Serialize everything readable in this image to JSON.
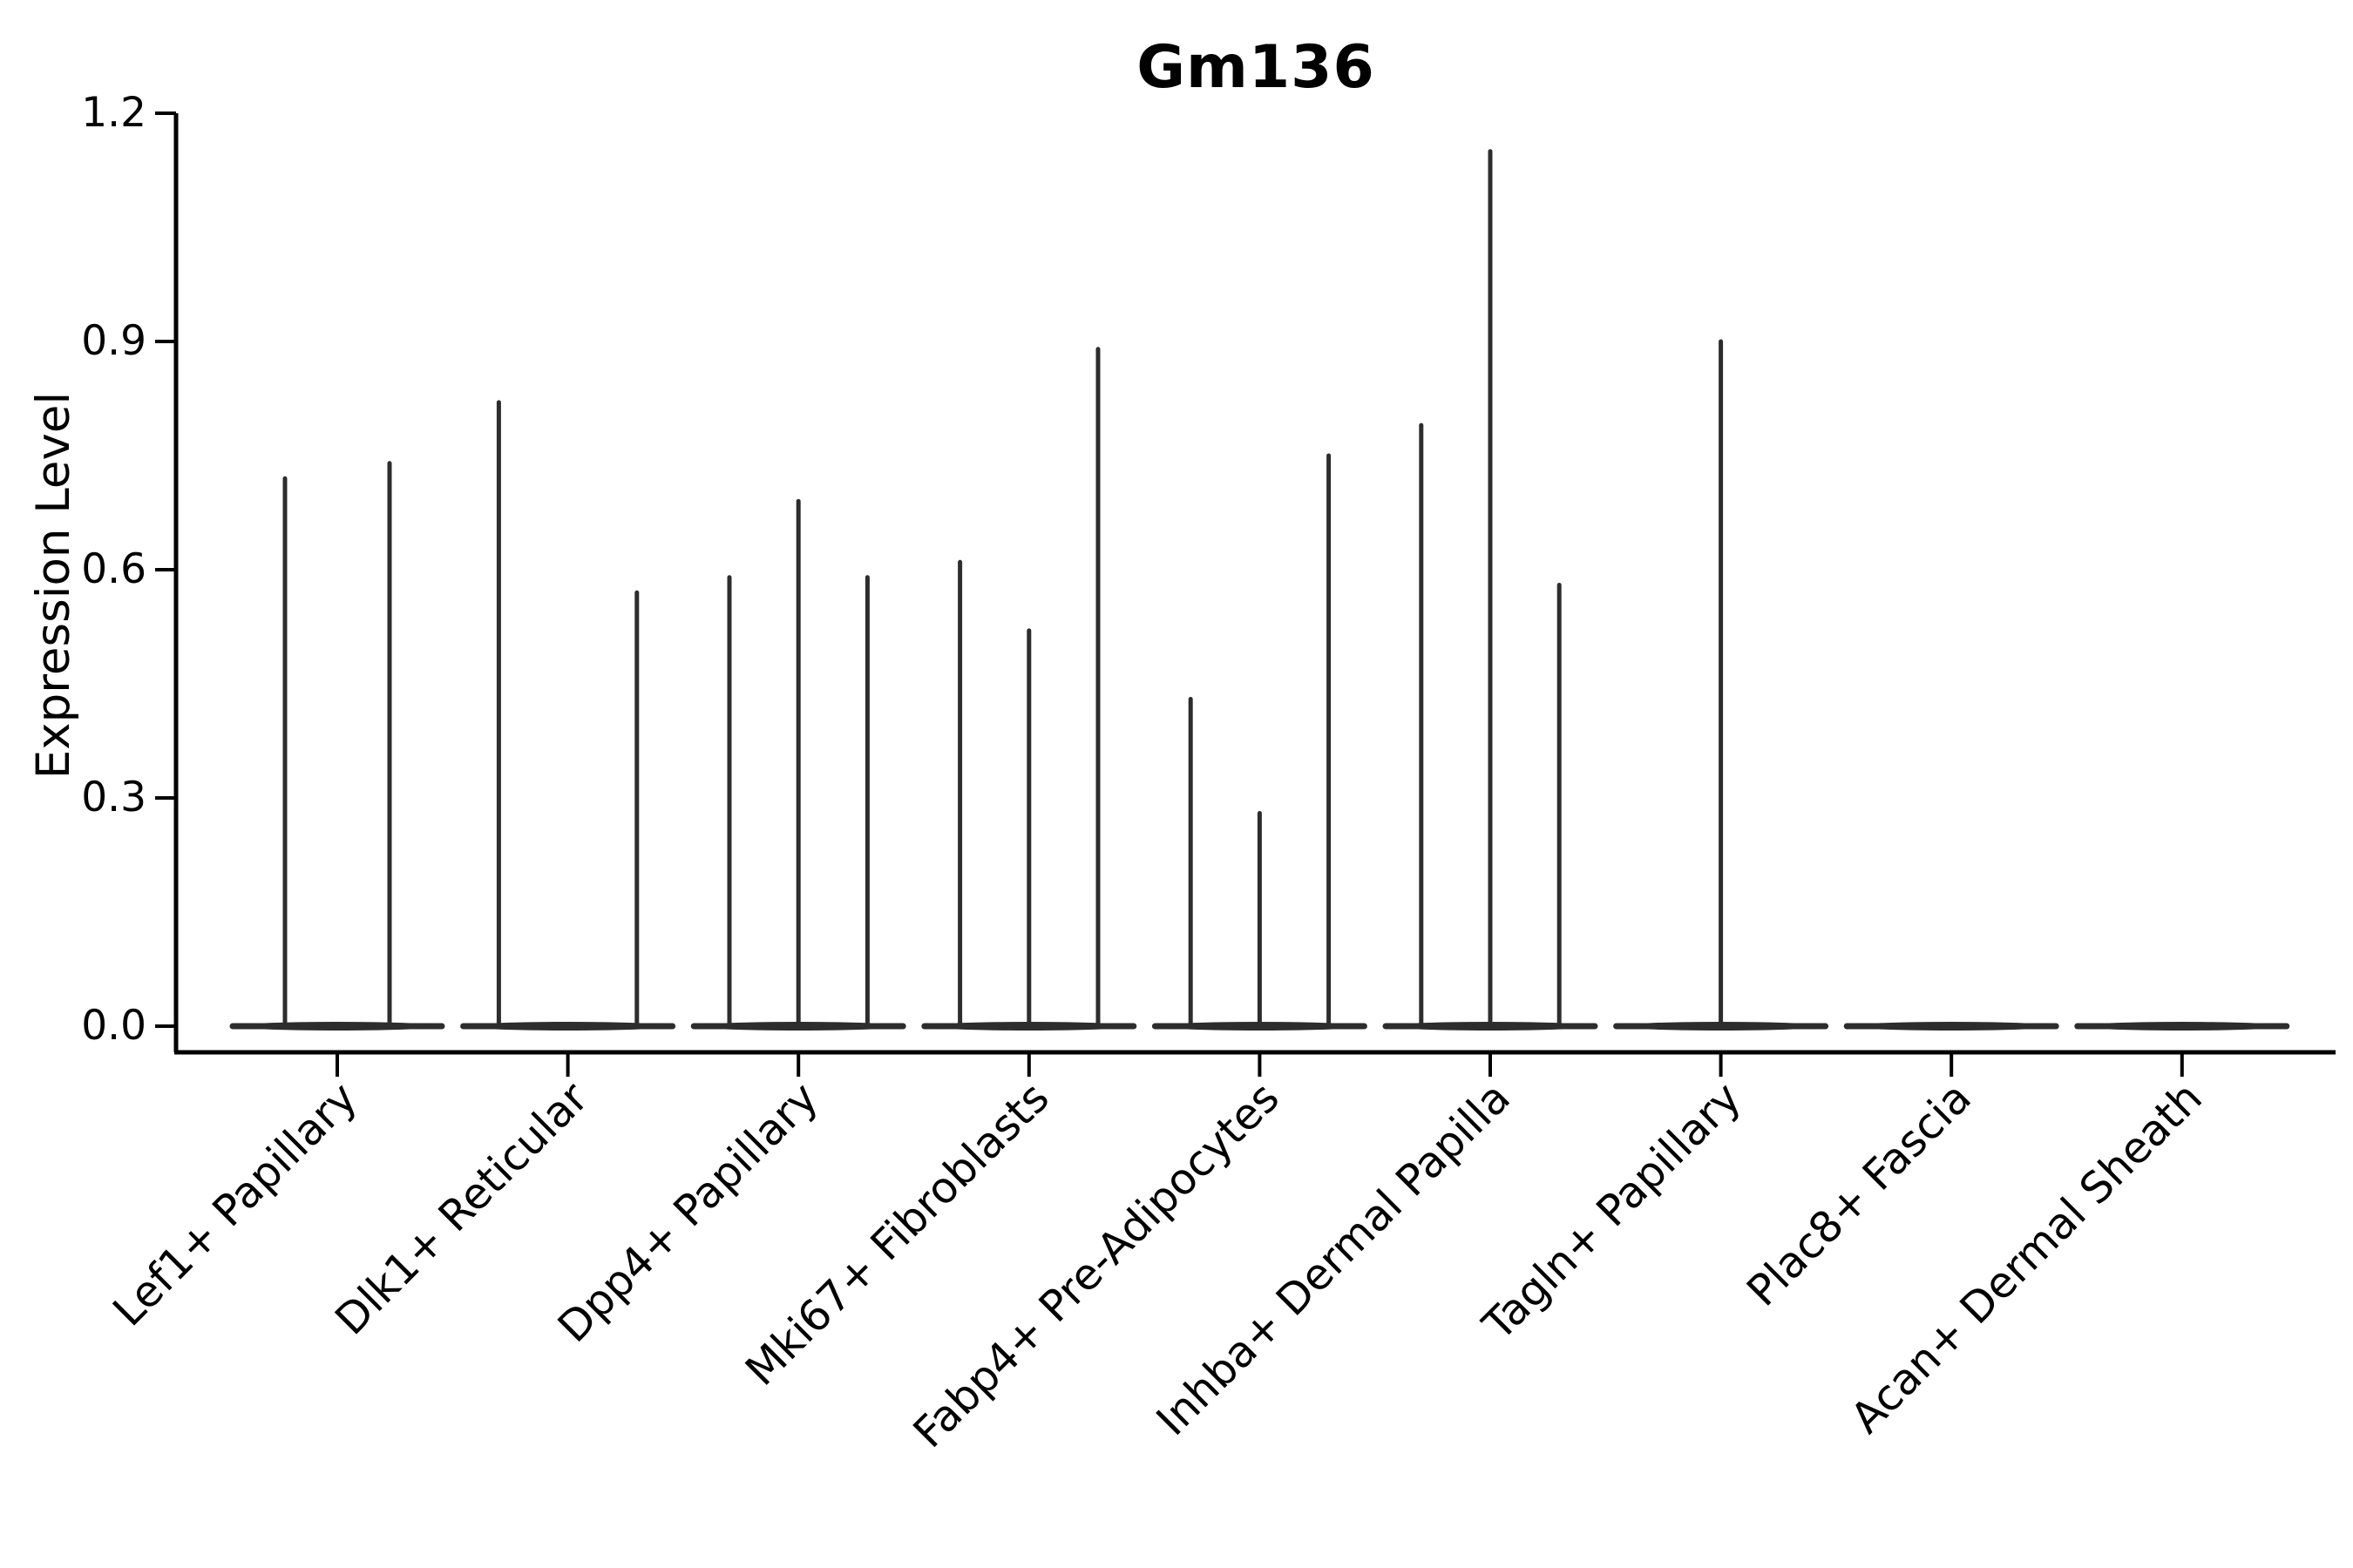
{
  "figure": {
    "background_color": "#ffffff",
    "line_color": "#2d2d2d",
    "axis_color": "#000000",
    "text_color": "#000000"
  },
  "chart_data": {
    "type": "violin",
    "title": "Gm136",
    "xlabel": "",
    "ylabel": "Expression Level",
    "ylim": [
      -0.035,
      1.2
    ],
    "grid": false,
    "legend": null,
    "yticks": [
      {
        "value": 0.0,
        "label": "0.0"
      },
      {
        "value": 0.3,
        "label": "0.3"
      },
      {
        "value": 0.6,
        "label": "0.6"
      },
      {
        "value": 0.9,
        "label": "0.9"
      },
      {
        "value": 1.2,
        "label": "1.2"
      }
    ],
    "categories": [
      "Lef1+ Papillary",
      "Dlk1+ Reticular",
      "Dpp4+ Papillary",
      "Mki67+ Fibroblasts",
      "Fabp4+ Pre-Adipocytes",
      "Inhba+ Dermal Papilla",
      "Tagln+ Papillary",
      "Plac8+ Fascia",
      "Acan+ Dermal Sheath"
    ],
    "groups": [
      {
        "category": "Lef1+ Papillary",
        "violins": [
          {
            "pos": 0.25,
            "max": 0.72
          },
          {
            "pos": 0.75,
            "max": 0.74
          }
        ]
      },
      {
        "category": "Dlk1+ Reticular",
        "violins": [
          {
            "pos": 0.17,
            "max": 0.82
          },
          {
            "pos": 0.83,
            "max": 0.57
          }
        ]
      },
      {
        "category": "Dpp4+ Papillary",
        "violins": [
          {
            "pos": 0.17,
            "max": 0.59
          },
          {
            "pos": 0.5,
            "max": 0.69
          },
          {
            "pos": 0.83,
            "max": 0.59
          }
        ]
      },
      {
        "category": "Mki67+ Fibroblasts",
        "violins": [
          {
            "pos": 0.17,
            "max": 0.61
          },
          {
            "pos": 0.5,
            "max": 0.52
          },
          {
            "pos": 0.83,
            "max": 0.89
          }
        ]
      },
      {
        "category": "Fabp4+ Pre-Adipocytes",
        "violins": [
          {
            "pos": 0.17,
            "max": 0.43
          },
          {
            "pos": 0.5,
            "max": 0.28
          },
          {
            "pos": 0.83,
            "max": 0.75
          }
        ]
      },
      {
        "category": "Inhba+ Dermal Papilla",
        "violins": [
          {
            "pos": 0.17,
            "max": 0.79
          },
          {
            "pos": 0.5,
            "max": 1.15
          },
          {
            "pos": 0.83,
            "max": 0.58
          }
        ]
      },
      {
        "category": "Tagln+ Papillary",
        "violins": [
          {
            "pos": 0.5,
            "max": 0.9
          }
        ]
      },
      {
        "category": "Plac8+ Fascia",
        "violins": []
      },
      {
        "category": "Acan+ Dermal Sheath",
        "violins": []
      }
    ]
  }
}
